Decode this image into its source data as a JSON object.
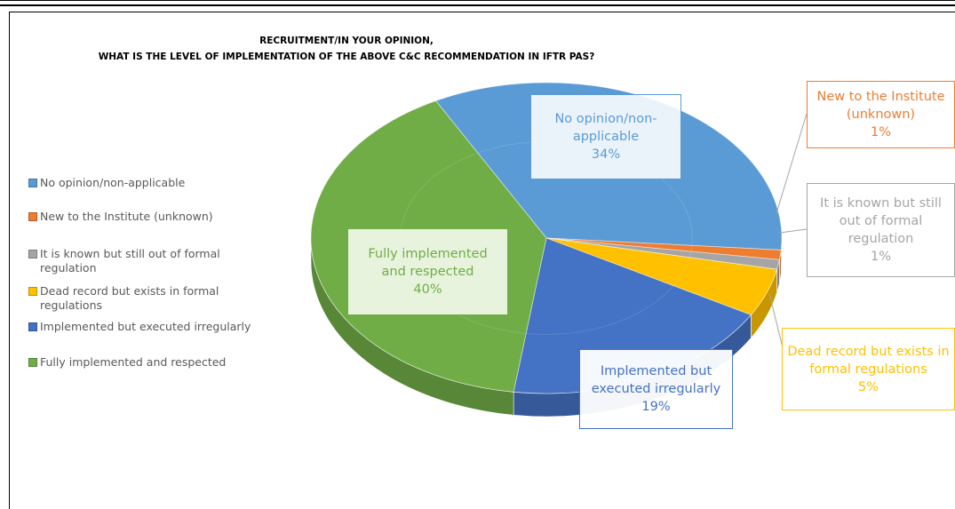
{
  "chart_data": {
    "type": "pie",
    "title_line1": "RECRUITMENT/IN YOUR OPINION,",
    "title_line2": "WHAT IS THE LEVEL OF IMPLEMENTATION OF THE ABOVE C&C RECOMMENDATION IN IFTR PAS?",
    "legend_position": "left",
    "slices": [
      {
        "label": "No opinion/non-applicable",
        "value": 34,
        "color": "#5b9bd5",
        "pct_label": "34%"
      },
      {
        "label": "New to the Institute (unknown)",
        "value": 1,
        "color": "#ed7d31",
        "pct_label": "1%"
      },
      {
        "label": "It is known but still out of formal regulation",
        "value": 1,
        "color": "#a5a5a5",
        "pct_label": "1%"
      },
      {
        "label": "Dead record but exists in formal regulations",
        "value": 5,
        "color": "#ffc000",
        "pct_label": "5%"
      },
      {
        "label": "Implemented but executed irregularly",
        "value": 19,
        "color": "#4472c4",
        "pct_label": "19%"
      },
      {
        "label": "Fully implemented and respected",
        "value": 40,
        "color": "#70ad47",
        "pct_label": "40%"
      }
    ],
    "data_labels": [
      {
        "text": "No opinion/non-\napplicable\n34%"
      },
      {
        "text": "New to the Institute\n(unknown)\n1%"
      },
      {
        "text": "It is known but still\nout of formal\nregulation\n1%"
      },
      {
        "text": "Dead record but exists in\nformal regulations\n5%"
      },
      {
        "text": "Implemented but\nexecuted irregularly\n19%"
      },
      {
        "text": "Fully implemented\nand respected\n40%"
      }
    ]
  }
}
